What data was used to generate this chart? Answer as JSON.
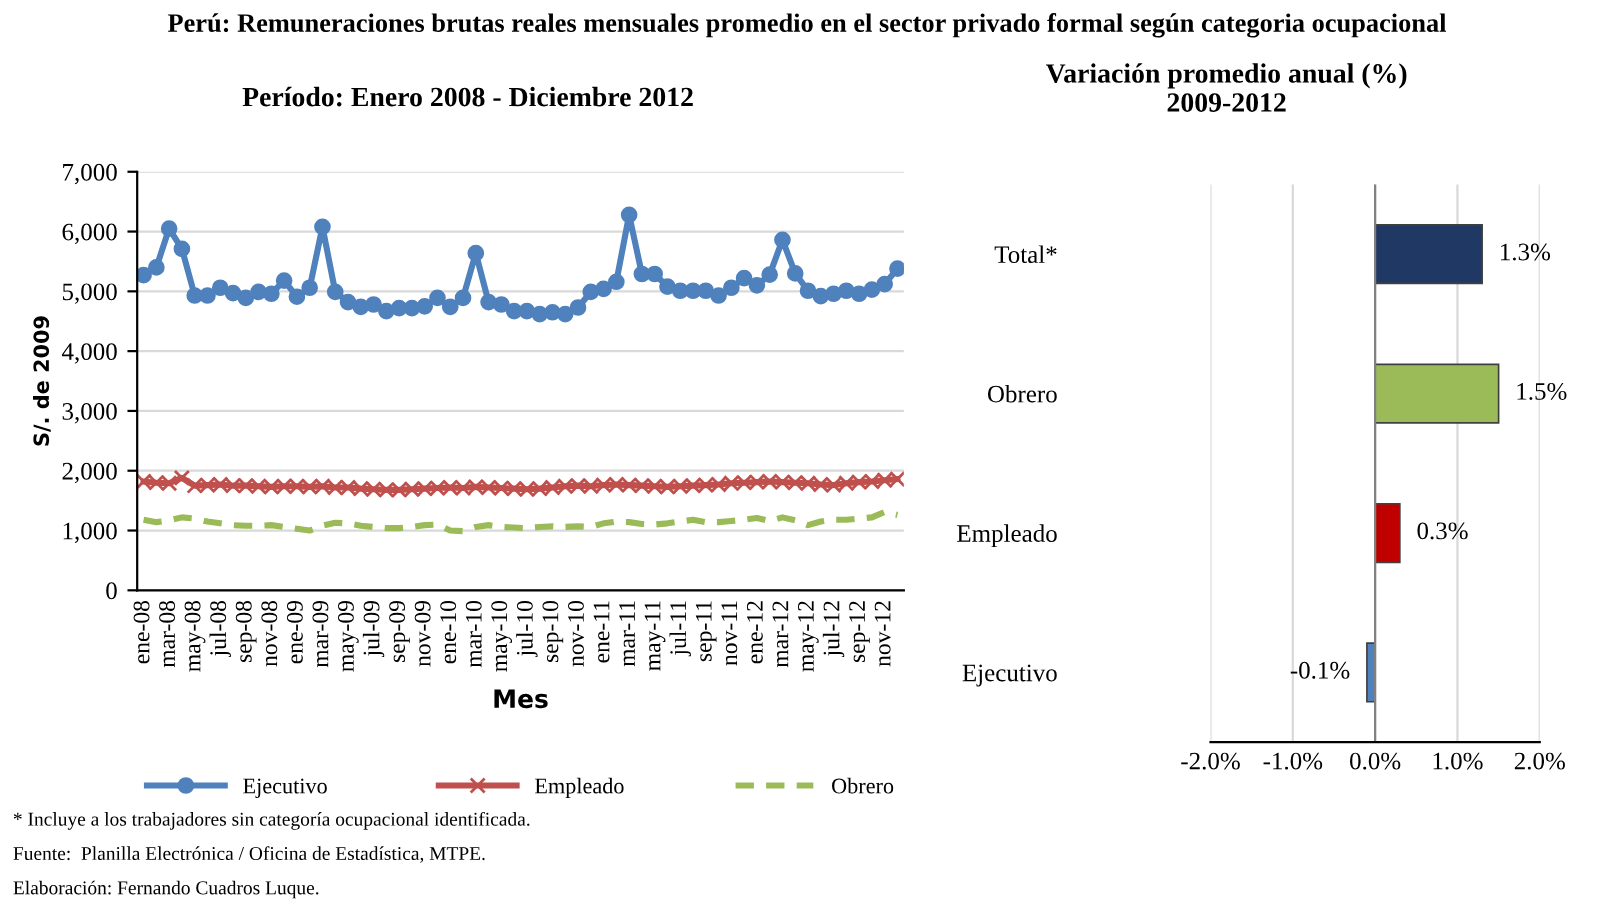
{
  "chart_data": [
    {
      "type": "line",
      "title": "Perú: Remuneraciones brutas reales mensuales promedio en el sector privado formal según categoria ocupacional",
      "subtitle": "Período: Enero 2008 - Diciembre 2012",
      "xlabel": "Mes",
      "ylabel": "S/. de 2009",
      "categories": [
        "ene-08",
        null,
        "mar-08",
        null,
        "may-08",
        null,
        "jul-08",
        null,
        "sep-08",
        null,
        "nov-08",
        null,
        "ene-09",
        null,
        "mar-09",
        null,
        "may-09",
        null,
        "jul-09",
        null,
        "sep-09",
        null,
        "nov-09",
        null,
        "ene-10",
        null,
        "mar-10",
        null,
        "may-10",
        null,
        "jul-10",
        null,
        "sep-10",
        null,
        "nov-10",
        null,
        "ene-11",
        null,
        "mar-11",
        null,
        "may-11",
        null,
        "jul-11",
        null,
        "sep-11",
        null,
        "nov-11",
        null,
        "ene-12",
        null,
        "mar-12",
        null,
        "may-12",
        null,
        "jul-12",
        null,
        "sep-12",
        null,
        "nov-12",
        null
      ],
      "series": [
        {
          "name": "Ejecutivo",
          "color": "#4f81bd",
          "marker": "circle",
          "line_style": "solid",
          "values": [
            5270,
            5400,
            6050,
            5710,
            4930,
            4930,
            5060,
            4970,
            4890,
            4990,
            4960,
            5180,
            4910,
            5060,
            6080,
            4990,
            4820,
            4740,
            4780,
            4670,
            4720,
            4720,
            4750,
            4890,
            4740,
            4890,
            5640,
            4820,
            4780,
            4670,
            4670,
            4620,
            4650,
            4620,
            4730,
            4990,
            5040,
            5160,
            6280,
            5290,
            5290,
            5080,
            5010,
            5010,
            5010,
            4930,
            5060,
            5220,
            5100,
            5280,
            5860,
            5300,
            5010,
            4920,
            4960,
            5010,
            4960,
            5030,
            5120,
            5380
          ]
        },
        {
          "name": "Empleado",
          "color": "#c0504d",
          "marker": "cross",
          "line_style": "solid",
          "values": [
            1820,
            1800,
            1790,
            1880,
            1750,
            1760,
            1770,
            1750,
            1750,
            1740,
            1730,
            1740,
            1740,
            1730,
            1740,
            1720,
            1720,
            1700,
            1690,
            1680,
            1680,
            1690,
            1700,
            1710,
            1720,
            1710,
            1730,
            1720,
            1710,
            1700,
            1690,
            1700,
            1720,
            1740,
            1750,
            1740,
            1760,
            1770,
            1760,
            1750,
            1740,
            1730,
            1740,
            1750,
            1760,
            1770,
            1790,
            1800,
            1810,
            1820,
            1810,
            1800,
            1790,
            1770,
            1760,
            1790,
            1810,
            1820,
            1840,
            1860
          ]
        },
        {
          "name": "Obrero",
          "color": "#9bbb59",
          "marker": "none",
          "line_style": "dashed",
          "values": [
            1180,
            1140,
            1170,
            1220,
            1200,
            1150,
            1120,
            1090,
            1080,
            1080,
            1090,
            1060,
            1030,
            1000,
            1080,
            1130,
            1120,
            1080,
            1060,
            1040,
            1040,
            1060,
            1090,
            1100,
            1000,
            990,
            1060,
            1090,
            1060,
            1050,
            1040,
            1060,
            1070,
            1060,
            1070,
            1060,
            1120,
            1150,
            1140,
            1110,
            1100,
            1120,
            1150,
            1180,
            1140,
            1140,
            1160,
            1180,
            1210,
            1160,
            1220,
            1170,
            1090,
            1150,
            1180,
            1180,
            1200,
            1220,
            1310,
            1260
          ]
        }
      ],
      "ylim": [
        0,
        7000
      ],
      "yticks": [
        {
          "value": 0,
          "label": "0"
        },
        {
          "value": 1000,
          "label": "1,000"
        },
        {
          "value": 2000,
          "label": "2,000"
        },
        {
          "value": 3000,
          "label": "3,000"
        },
        {
          "value": 4000,
          "label": "4,000"
        },
        {
          "value": 5000,
          "label": "5,000"
        },
        {
          "value": 6000,
          "label": "6,000"
        },
        {
          "value": 7000,
          "label": "7,000"
        }
      ],
      "grid": "y",
      "legend": "bottom",
      "annotations": [
        "* Incluye a los trabajadores sin categoría ocupacional identificada.",
        "Fuente:  Planilla Electrónica / Oficina de Estadística, MTPE.",
        "Elaboración: Fernando Cuadros Luque."
      ]
    },
    {
      "type": "bar",
      "orientation": "horizontal",
      "title": "Variación promedio anual (%)\n2009-2012",
      "categories": [
        "Total*",
        "Obrero",
        "Empleado",
        "Ejecutivo"
      ],
      "values": [
        1.3,
        1.5,
        0.3,
        -0.1
      ],
      "colors": [
        "#1f3864",
        "#9bbb59",
        "#c00000",
        "#4f81bd"
      ],
      "value_labels": [
        "1.3%",
        "1.5%",
        "0.3%",
        "-0.1%"
      ],
      "xlim": [
        -2.0,
        2.0
      ],
      "xticks": [
        {
          "value": -2.0,
          "label": "-2.0%"
        },
        {
          "value": -1.0,
          "label": "-1.0%"
        },
        {
          "value": 0.0,
          "label": "0.0%"
        },
        {
          "value": 1.0,
          "label": "1.0%"
        },
        {
          "value": 2.0,
          "label": "2.0%"
        }
      ],
      "grid": "x"
    }
  ]
}
